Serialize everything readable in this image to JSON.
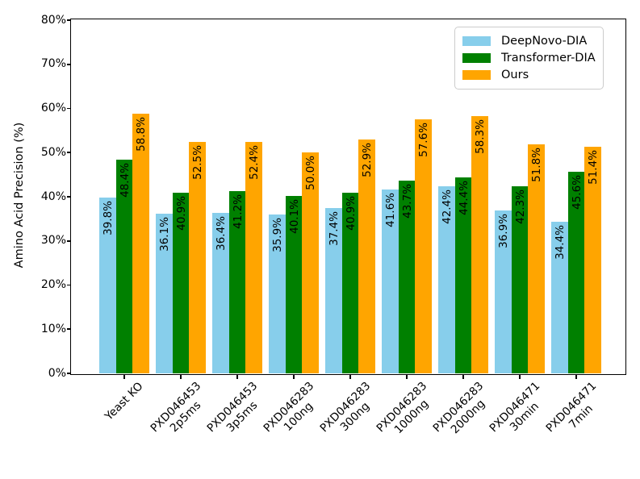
{
  "chart_data": {
    "type": "bar",
    "title": "",
    "xlabel": "",
    "ylabel": "Amino Acid Precision (%)",
    "ylim": [
      0,
      80
    ],
    "grid": false,
    "legend_position": "upper right",
    "yticks": {
      "values": [
        0,
        10,
        20,
        30,
        40,
        50,
        60,
        70,
        80
      ],
      "labels": [
        "0%",
        "10%",
        "20%",
        "30%",
        "40%",
        "50%",
        "60%",
        "70%",
        "80%"
      ]
    },
    "categories": [
      "Yeast KO",
      "PXD046453\n2p5ms",
      "PXD046453\n3p5ms",
      "PXD046283\n100ng",
      "PXD046283\n300ng",
      "PXD046283\n1000ng",
      "PXD046283\n2000ng",
      "PXD046471\n30min",
      "PXD046471\n7min"
    ],
    "series": [
      {
        "name": "DeepNovo-DIA",
        "color": "#87CEEB",
        "values": [
          39.8,
          36.1,
          36.4,
          35.9,
          37.4,
          41.6,
          42.4,
          36.9,
          34.4
        ],
        "bar_labels": [
          "39.8%",
          "36.1%",
          "36.4%",
          "35.9%",
          "37.4%",
          "41.6%",
          "42.4%",
          "36.9%",
          "34.4%"
        ]
      },
      {
        "name": "Transformer-DIA",
        "color": "#008000",
        "values": [
          48.4,
          40.9,
          41.2,
          40.1,
          40.9,
          43.7,
          44.4,
          42.3,
          45.6
        ],
        "bar_labels": [
          "48.4%",
          "40.9%",
          "41.2%",
          "40.1%",
          "40.9%",
          "43.7%",
          "44.4%",
          "42.3%",
          "45.6%"
        ]
      },
      {
        "name": "Ours",
        "color": "#FFA500",
        "values": [
          58.8,
          52.5,
          52.4,
          50.0,
          52.9,
          57.6,
          58.3,
          51.8,
          51.4
        ],
        "bar_labels": [
          "58.8%",
          "52.5%",
          "52.4%",
          "50.0%",
          "52.9%",
          "57.6%",
          "58.3%",
          "51.8%",
          "51.4%"
        ]
      }
    ],
    "value_label_color": "#000000",
    "spine_color": "#000000"
  }
}
